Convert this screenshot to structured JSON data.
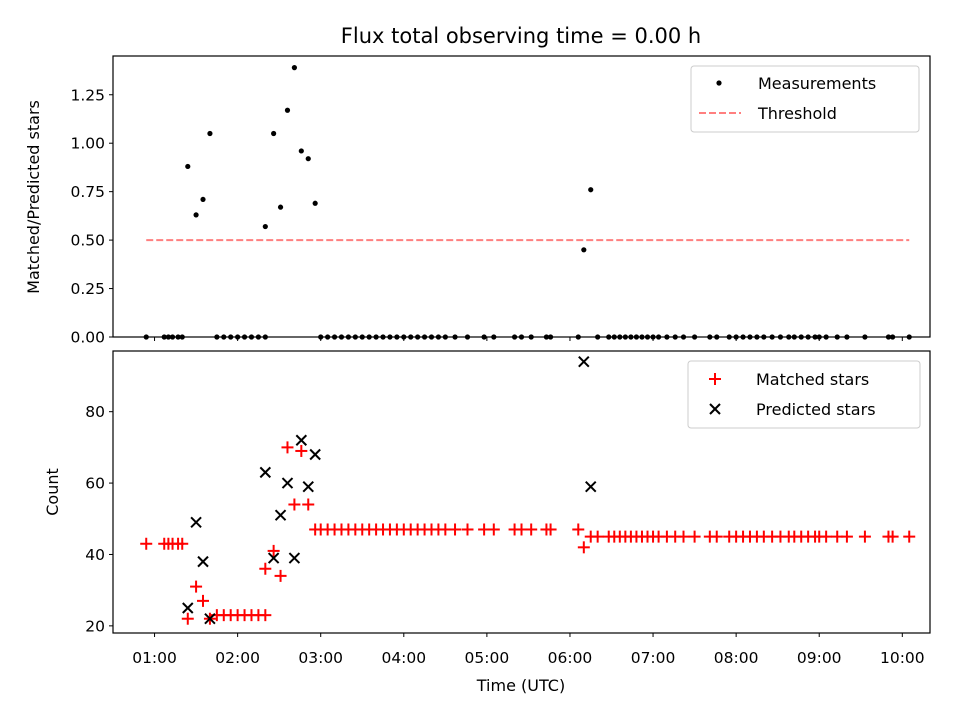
{
  "chart_data": [
    {
      "type": "scatter",
      "title": "Flux total observing time = 0.00 h",
      "ylabel": "Matched/Predicted stars",
      "xlim": [
        "00:30",
        "10:20"
      ],
      "ylim": [
        0,
        1.45
      ],
      "yticks": [
        "0.00",
        "0.25",
        "0.50",
        "0.75",
        "1.00",
        "1.25"
      ],
      "grid": false,
      "legend_position": "top-right",
      "series": [
        {
          "name": "Measurements",
          "color": "#000000",
          "marker": "dot",
          "points": [
            [
              "00:54",
              0
            ],
            [
              "01:07",
              0
            ],
            [
              "01:10",
              0
            ],
            [
              "01:13",
              0
            ],
            [
              "01:17",
              0
            ],
            [
              "01:20",
              0
            ],
            [
              "01:24",
              0.88
            ],
            [
              "01:30",
              0.63
            ],
            [
              "01:35",
              0.71
            ],
            [
              "01:40",
              1.05
            ],
            [
              "01:45",
              0
            ],
            [
              "01:50",
              0
            ],
            [
              "01:55",
              0
            ],
            [
              "02:00",
              0
            ],
            [
              "02:05",
              0
            ],
            [
              "02:10",
              0
            ],
            [
              "02:15",
              0
            ],
            [
              "02:20",
              0
            ],
            [
              "02:20",
              0.57
            ],
            [
              "02:26",
              1.05
            ],
            [
              "02:31",
              0.67
            ],
            [
              "02:36",
              1.17
            ],
            [
              "02:41",
              1.39
            ],
            [
              "02:46",
              0.96
            ],
            [
              "02:51",
              0.92
            ],
            [
              "02:56",
              0.69
            ],
            [
              "03:00",
              0
            ],
            [
              "03:05",
              0
            ],
            [
              "03:10",
              0
            ],
            [
              "03:15",
              0
            ],
            [
              "03:20",
              0
            ],
            [
              "03:25",
              0
            ],
            [
              "03:30",
              0
            ],
            [
              "03:35",
              0
            ],
            [
              "03:40",
              0
            ],
            [
              "03:45",
              0
            ],
            [
              "03:50",
              0
            ],
            [
              "03:55",
              0
            ],
            [
              "04:00",
              0
            ],
            [
              "04:05",
              0
            ],
            [
              "04:10",
              0
            ],
            [
              "04:15",
              0
            ],
            [
              "04:20",
              0
            ],
            [
              "04:25",
              0
            ],
            [
              "04:30",
              0
            ],
            [
              "04:37",
              0
            ],
            [
              "04:46",
              0
            ],
            [
              "04:58",
              0
            ],
            [
              "05:05",
              0
            ],
            [
              "05:20",
              0
            ],
            [
              "05:25",
              0
            ],
            [
              "05:32",
              0
            ],
            [
              "05:43",
              0
            ],
            [
              "05:46",
              0
            ],
            [
              "06:06",
              0
            ],
            [
              "06:10",
              0.45
            ],
            [
              "06:15",
              0.76
            ],
            [
              "06:20",
              0
            ],
            [
              "06:28",
              0
            ],
            [
              "06:32",
              0
            ],
            [
              "06:36",
              0
            ],
            [
              "06:40",
              0
            ],
            [
              "06:44",
              0
            ],
            [
              "06:48",
              0
            ],
            [
              "06:52",
              0
            ],
            [
              "06:56",
              0
            ],
            [
              "07:00",
              0
            ],
            [
              "07:04",
              0
            ],
            [
              "07:10",
              0
            ],
            [
              "07:16",
              0
            ],
            [
              "07:22",
              0
            ],
            [
              "07:30",
              0
            ],
            [
              "07:41",
              0
            ],
            [
              "07:46",
              0
            ],
            [
              "07:55",
              0
            ],
            [
              "08:00",
              0
            ],
            [
              "08:05",
              0
            ],
            [
              "08:10",
              0
            ],
            [
              "08:15",
              0
            ],
            [
              "08:20",
              0
            ],
            [
              "08:26",
              0
            ],
            [
              "08:32",
              0
            ],
            [
              "08:38",
              0
            ],
            [
              "08:42",
              0
            ],
            [
              "08:47",
              0
            ],
            [
              "08:52",
              0
            ],
            [
              "08:57",
              0
            ],
            [
              "09:00",
              0
            ],
            [
              "09:05",
              0
            ],
            [
              "09:13",
              0
            ],
            [
              "09:20",
              0
            ],
            [
              "09:33",
              0
            ],
            [
              "09:50",
              0
            ],
            [
              "09:53",
              0
            ],
            [
              "10:05",
              0
            ]
          ]
        },
        {
          "name": "Threshold",
          "type": "line",
          "style": "dashed",
          "color": "#ff7f7f",
          "points": [
            [
              "00:54",
              0.5
            ],
            [
              "10:05",
              0.5
            ]
          ]
        }
      ]
    },
    {
      "type": "scatter",
      "xlabel": "Time (UTC)",
      "ylabel": "Count",
      "xlim": [
        "00:30",
        "10:20"
      ],
      "ylim": [
        18,
        97
      ],
      "xticks": [
        "01:00",
        "02:00",
        "03:00",
        "04:00",
        "05:00",
        "06:00",
        "07:00",
        "08:00",
        "09:00",
        "10:00"
      ],
      "yticks": [
        "20",
        "40",
        "60",
        "80"
      ],
      "grid": false,
      "legend_position": "top-right",
      "series": [
        {
          "name": "Matched stars",
          "color": "#ff0000",
          "marker": "plus",
          "points": [
            [
              "00:54",
              43
            ],
            [
              "01:07",
              43
            ],
            [
              "01:10",
              43
            ],
            [
              "01:13",
              43
            ],
            [
              "01:17",
              43
            ],
            [
              "01:20",
              43
            ],
            [
              "01:24",
              22
            ],
            [
              "01:30",
              31
            ],
            [
              "01:35",
              27
            ],
            [
              "01:40",
              22
            ],
            [
              "01:45",
              23
            ],
            [
              "01:50",
              23
            ],
            [
              "01:55",
              23
            ],
            [
              "02:00",
              23
            ],
            [
              "02:05",
              23
            ],
            [
              "02:10",
              23
            ],
            [
              "02:15",
              23
            ],
            [
              "02:20",
              23
            ],
            [
              "02:20",
              36
            ],
            [
              "02:26",
              41
            ],
            [
              "02:31",
              34
            ],
            [
              "02:36",
              70
            ],
            [
              "02:41",
              54
            ],
            [
              "02:46",
              69
            ],
            [
              "02:51",
              54
            ],
            [
              "02:56",
              47
            ],
            [
              "03:00",
              47
            ],
            [
              "03:05",
              47
            ],
            [
              "03:10",
              47
            ],
            [
              "03:15",
              47
            ],
            [
              "03:20",
              47
            ],
            [
              "03:25",
              47
            ],
            [
              "03:30",
              47
            ],
            [
              "03:35",
              47
            ],
            [
              "03:40",
              47
            ],
            [
              "03:45",
              47
            ],
            [
              "03:50",
              47
            ],
            [
              "03:55",
              47
            ],
            [
              "04:00",
              47
            ],
            [
              "04:05",
              47
            ],
            [
              "04:10",
              47
            ],
            [
              "04:15",
              47
            ],
            [
              "04:20",
              47
            ],
            [
              "04:25",
              47
            ],
            [
              "04:30",
              47
            ],
            [
              "04:37",
              47
            ],
            [
              "04:46",
              47
            ],
            [
              "04:58",
              47
            ],
            [
              "05:05",
              47
            ],
            [
              "05:20",
              47
            ],
            [
              "05:25",
              47
            ],
            [
              "05:32",
              47
            ],
            [
              "05:43",
              47
            ],
            [
              "05:46",
              47
            ],
            [
              "06:06",
              47
            ],
            [
              "06:10",
              42
            ],
            [
              "06:15",
              45
            ],
            [
              "06:20",
              45
            ],
            [
              "06:28",
              45
            ],
            [
              "06:32",
              45
            ],
            [
              "06:36",
              45
            ],
            [
              "06:40",
              45
            ],
            [
              "06:44",
              45
            ],
            [
              "06:48",
              45
            ],
            [
              "06:52",
              45
            ],
            [
              "06:56",
              45
            ],
            [
              "07:00",
              45
            ],
            [
              "07:04",
              45
            ],
            [
              "07:10",
              45
            ],
            [
              "07:16",
              45
            ],
            [
              "07:22",
              45
            ],
            [
              "07:30",
              45
            ],
            [
              "07:41",
              45
            ],
            [
              "07:46",
              45
            ],
            [
              "07:55",
              45
            ],
            [
              "08:00",
              45
            ],
            [
              "08:05",
              45
            ],
            [
              "08:10",
              45
            ],
            [
              "08:15",
              45
            ],
            [
              "08:20",
              45
            ],
            [
              "08:26",
              45
            ],
            [
              "08:32",
              45
            ],
            [
              "08:38",
              45
            ],
            [
              "08:42",
              45
            ],
            [
              "08:47",
              45
            ],
            [
              "08:52",
              45
            ],
            [
              "08:57",
              45
            ],
            [
              "09:00",
              45
            ],
            [
              "09:05",
              45
            ],
            [
              "09:13",
              45
            ],
            [
              "09:20",
              45
            ],
            [
              "09:33",
              45
            ],
            [
              "09:50",
              45
            ],
            [
              "09:53",
              45
            ],
            [
              "10:05",
              45
            ]
          ]
        },
        {
          "name": "Predicted stars",
          "color": "#000000",
          "marker": "x",
          "points": [
            [
              "01:24",
              25
            ],
            [
              "01:30",
              49
            ],
            [
              "01:35",
              38
            ],
            [
              "01:40",
              22
            ],
            [
              "02:20",
              63
            ],
            [
              "02:26",
              39
            ],
            [
              "02:31",
              51
            ],
            [
              "02:36",
              60
            ],
            [
              "02:41",
              39
            ],
            [
              "02:46",
              72
            ],
            [
              "02:51",
              59
            ],
            [
              "02:56",
              68
            ],
            [
              "06:10",
              94
            ],
            [
              "06:15",
              59
            ]
          ]
        }
      ]
    }
  ]
}
